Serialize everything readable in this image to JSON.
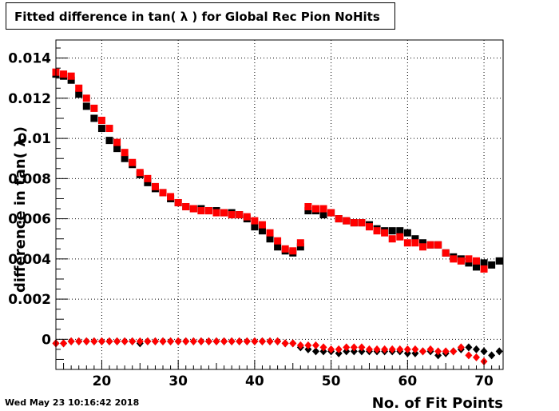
{
  "title": "Fitted difference in tan( λ ) for Global Rec Pion NoHits",
  "timestamp": "Wed May 23 10:16:42 2018",
  "chart_data": {
    "type": "scatter",
    "title": "Fitted difference in tan( λ ) for Global Rec Pion NoHits",
    "xlabel": "No. of Fit Points",
    "ylabel": "difference in tan( λ )",
    "xlim": [
      14,
      72.5
    ],
    "ylim": [
      -0.0015,
      0.0149
    ],
    "grid": true,
    "x_ticks": [
      20,
      30,
      40,
      50,
      60,
      70
    ],
    "y_ticks": [
      0,
      0.002,
      0.004,
      0.006,
      0.008,
      0.01,
      0.012,
      0.014
    ],
    "x_tick_labels": [
      "20",
      "30",
      "40",
      "50",
      "60",
      "70"
    ],
    "y_tick_labels": [
      "0",
      "0.002",
      "0.004",
      "0.006",
      "0.008",
      "0.01",
      "0.012",
      "0.014"
    ],
    "colors": {
      "black": "#000000",
      "red": "#ff0000"
    },
    "series": [
      {
        "color": "#000000",
        "marker": "square",
        "x": [
          14,
          15,
          16,
          17,
          18,
          19,
          20,
          21,
          22,
          23,
          24,
          25,
          26,
          27,
          28,
          29,
          30,
          31,
          32,
          33,
          34,
          35,
          36,
          37,
          38,
          39,
          40,
          41,
          42,
          43,
          44,
          45,
          46,
          47,
          48,
          49,
          50,
          51,
          52,
          53,
          54,
          55,
          56,
          57,
          58,
          59,
          60,
          61,
          62,
          63,
          64,
          65,
          66,
          67,
          68,
          69,
          70,
          71,
          72
        ],
        "y": [
          0.0132,
          0.0131,
          0.0129,
          0.0122,
          0.0116,
          0.011,
          0.0105,
          0.0099,
          0.0095,
          0.009,
          0.0087,
          0.0082,
          0.0078,
          0.0075,
          0.0073,
          0.007,
          0.0068,
          0.0066,
          0.0065,
          0.0065,
          0.0064,
          0.0064,
          0.0063,
          0.0063,
          0.0062,
          0.006,
          0.0056,
          0.0054,
          0.005,
          0.0046,
          0.0044,
          0.0043,
          0.0046,
          0.0064,
          0.0064,
          0.0062,
          0.0063,
          0.006,
          0.0059,
          0.0058,
          0.0058,
          0.0057,
          0.0055,
          0.0054,
          0.0054,
          0.0054,
          0.0053,
          0.005,
          0.0048,
          0.0047,
          0.0047,
          0.0043,
          0.0041,
          0.004,
          0.0038,
          0.0036,
          0.0038,
          0.0037,
          0.0039
        ]
      },
      {
        "color": "#ff0000",
        "marker": "square",
        "x": [
          14,
          15,
          16,
          17,
          18,
          19,
          20,
          21,
          22,
          23,
          24,
          25,
          26,
          27,
          28,
          29,
          30,
          31,
          32,
          33,
          34,
          35,
          36,
          37,
          38,
          39,
          40,
          41,
          42,
          43,
          44,
          45,
          46,
          47,
          48,
          49,
          50,
          51,
          52,
          53,
          54,
          55,
          56,
          57,
          58,
          59,
          60,
          61,
          62,
          63,
          64,
          65,
          66,
          67,
          68,
          69,
          70
        ],
        "y": [
          0.0133,
          0.0132,
          0.0131,
          0.0125,
          0.012,
          0.0115,
          0.0109,
          0.0105,
          0.0098,
          0.0093,
          0.0088,
          0.0083,
          0.008,
          0.0076,
          0.0073,
          0.0071,
          0.0068,
          0.0066,
          0.0065,
          0.0064,
          0.0064,
          0.0063,
          0.0063,
          0.0062,
          0.0062,
          0.0061,
          0.0059,
          0.0057,
          0.0053,
          0.0049,
          0.0045,
          0.0044,
          0.0048,
          0.0066,
          0.0065,
          0.0065,
          0.0063,
          0.006,
          0.0059,
          0.0058,
          0.0058,
          0.0056,
          0.0054,
          0.0053,
          0.005,
          0.0051,
          0.0048,
          0.0048,
          0.0046,
          0.0047,
          0.0047,
          0.0043,
          0.004,
          0.0039,
          0.004,
          0.0039,
          0.0035
        ]
      },
      {
        "color": "#000000",
        "marker": "diamond",
        "x": [
          14,
          15,
          16,
          17,
          18,
          19,
          20,
          21,
          22,
          23,
          24,
          25,
          26,
          27,
          28,
          29,
          30,
          31,
          32,
          33,
          34,
          35,
          36,
          37,
          38,
          39,
          40,
          41,
          42,
          43,
          44,
          45,
          46,
          47,
          48,
          49,
          50,
          51,
          52,
          53,
          54,
          55,
          56,
          57,
          58,
          59,
          60,
          61,
          62,
          63,
          64,
          65,
          66,
          67,
          68,
          69,
          70,
          71,
          72
        ],
        "y": [
          -0.0002,
          -0.0002,
          -0.0001,
          -0.0001,
          -0.0001,
          -0.0001,
          -0.0001,
          -0.0001,
          -0.0001,
          -0.0001,
          -0.0001,
          -0.0002,
          -0.0001,
          -0.0001,
          -0.0001,
          -0.0001,
          -0.0001,
          -0.0001,
          -0.0001,
          -0.0001,
          -0.0001,
          -0.0001,
          -0.0001,
          -0.0001,
          -0.0001,
          -0.0001,
          -0.0001,
          -0.0001,
          -0.0001,
          -0.0001,
          -0.0002,
          -0.0002,
          -0.0004,
          -0.0005,
          -0.0006,
          -0.0006,
          -0.0006,
          -0.0007,
          -0.0006,
          -0.0006,
          -0.0006,
          -0.0006,
          -0.0006,
          -0.0006,
          -0.0006,
          -0.0006,
          -0.0007,
          -0.0007,
          -0.0006,
          -0.0006,
          -0.0008,
          -0.0007,
          -0.0006,
          -0.0005,
          -0.0004,
          -0.0005,
          -0.0006,
          -0.0008,
          -0.0006
        ]
      },
      {
        "color": "#ff0000",
        "marker": "diamond",
        "x": [
          14,
          15,
          16,
          17,
          18,
          19,
          20,
          21,
          22,
          23,
          24,
          25,
          26,
          27,
          28,
          29,
          30,
          31,
          32,
          33,
          34,
          35,
          36,
          37,
          38,
          39,
          40,
          41,
          42,
          43,
          44,
          45,
          46,
          47,
          48,
          49,
          50,
          51,
          52,
          53,
          54,
          55,
          56,
          57,
          58,
          59,
          60,
          61,
          62,
          63,
          64,
          65,
          66,
          67,
          68,
          69,
          70
        ],
        "y": [
          -0.0002,
          -0.0002,
          -0.0001,
          -0.0001,
          -0.0001,
          -0.0001,
          -0.0001,
          -0.0001,
          -0.0001,
          -0.0001,
          -0.0001,
          -0.0001,
          -0.0001,
          -0.0001,
          -0.0001,
          -0.0001,
          -0.0001,
          -0.0001,
          -0.0001,
          -0.0001,
          -0.0001,
          -0.0001,
          -0.0001,
          -0.0001,
          -0.0001,
          -0.0001,
          -0.0001,
          -0.0001,
          -0.0001,
          -0.0001,
          -0.0002,
          -0.0002,
          -0.0003,
          -0.0003,
          -0.0003,
          -0.0004,
          -0.0005,
          -0.0005,
          -0.0004,
          -0.0004,
          -0.0004,
          -0.0005,
          -0.0005,
          -0.0005,
          -0.0005,
          -0.0005,
          -0.0005,
          -0.0005,
          -0.0006,
          -0.0005,
          -0.0006,
          -0.0006,
          -0.0006,
          -0.0004,
          -0.0008,
          -0.0009,
          -0.0011
        ]
      }
    ]
  }
}
